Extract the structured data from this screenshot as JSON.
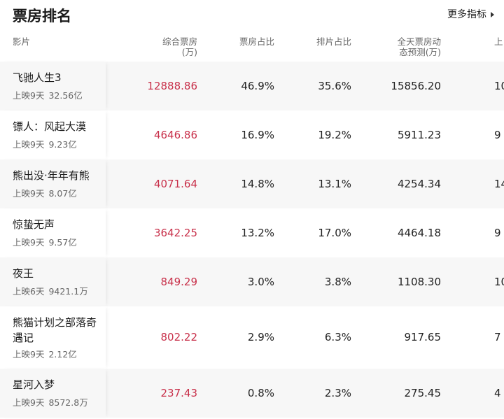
{
  "header": {
    "title": "票房排名",
    "more_label": "更多指标"
  },
  "columns": {
    "film": "影片",
    "box_office_l1": "综合票房",
    "box_office_l2": "(万)",
    "box_share": "票房占比",
    "screen_share": "排片占比",
    "forecast_l1": "全天票房动",
    "forecast_l2": "态预测(万)",
    "extra": "上"
  },
  "rows": [
    {
      "name": "飞驰人生3",
      "days": "上映9天",
      "total": "32.56亿",
      "box": "12888.86",
      "box_share": "46.9%",
      "screen_share": "35.6%",
      "forecast": "15856.20",
      "extra": "10"
    },
    {
      "name": "镖人：风起大漠",
      "days": "上映9天",
      "total": "9.23亿",
      "box": "4646.86",
      "box_share": "16.9%",
      "screen_share": "19.2%",
      "forecast": "5911.23",
      "extra": "9"
    },
    {
      "name": "熊出没·年年有熊",
      "days": "上映9天",
      "total": "8.07亿",
      "box": "4071.64",
      "box_share": "14.8%",
      "screen_share": "13.1%",
      "forecast": "4254.34",
      "extra": "14"
    },
    {
      "name": "惊蛰无声",
      "days": "上映9天",
      "total": "9.57亿",
      "box": "3642.25",
      "box_share": "13.2%",
      "screen_share": "17.0%",
      "forecast": "4464.18",
      "extra": "9"
    },
    {
      "name": "夜王",
      "days": "上映6天",
      "total": "9421.1万",
      "box": "849.29",
      "box_share": "3.0%",
      "screen_share": "3.8%",
      "forecast": "1108.30",
      "extra": "10"
    },
    {
      "name": "熊猫计划之部落奇遇记",
      "days": "上映9天",
      "total": "2.12亿",
      "box": "802.22",
      "box_share": "2.9%",
      "screen_share": "6.3%",
      "forecast": "917.65",
      "extra": "7"
    },
    {
      "name": "星河入梦",
      "days": "上映9天",
      "total": "8572.8万",
      "box": "237.43",
      "box_share": "0.8%",
      "screen_share": "2.3%",
      "forecast": "275.45",
      "extra": "4"
    }
  ]
}
